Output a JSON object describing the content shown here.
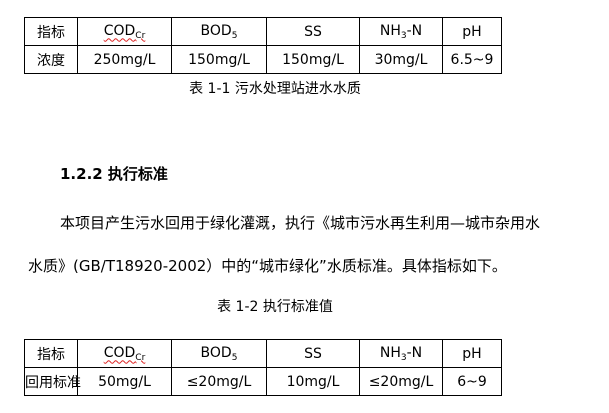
{
  "table1": {
    "header": [
      {
        "main": "指标",
        "sub": ""
      },
      {
        "main": "COD",
        "sub": "Cr"
      },
      {
        "main": "BOD",
        "sub": "5"
      },
      {
        "main": "SS",
        "sub": ""
      },
      {
        "main": "NH",
        "sub": "3",
        "suffix": "-N"
      },
      {
        "main": "pH",
        "sub": ""
      }
    ],
    "row": [
      "浓度",
      "250mg/L",
      "150mg/L",
      "150mg/L",
      "30mg/L",
      "6.5~9"
    ]
  },
  "caption1": "表 1-1   污水处理站进水水质",
  "heading": "1.2.2  执行标准",
  "paragraph": {
    "line1": "本项目产生污水回用于绿化灌溉，执行《城市污水再生利用—城市杂用水",
    "line2": "水质》(GB/T18920-2002）中的“城市绿化”水质标准。具体指标如下。"
  },
  "caption2": "表 1-2   执行标准值",
  "table2": {
    "row": [
      "回用标准",
      "50mg/L",
      "≤20mg/L",
      "10mg/L",
      "≤20mg/L",
      "6~9"
    ]
  }
}
